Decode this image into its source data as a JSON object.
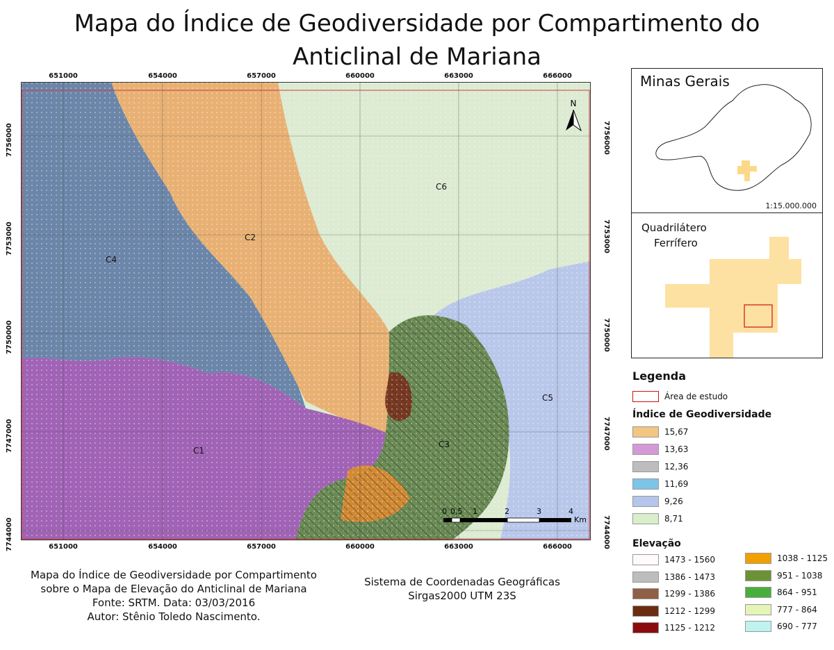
{
  "title": {
    "line1": "Mapa do Índice de Geodiversidade por Compartimento do",
    "line2": "Anticlinal de Mariana"
  },
  "map": {
    "x_ticks": [
      "651000",
      "654000",
      "657000",
      "660000",
      "663000",
      "666000"
    ],
    "y_ticks": [
      "7756000",
      "7753000",
      "7750000",
      "7747000",
      "7744000"
    ],
    "region_labels": [
      "C1",
      "C2",
      "C3",
      "C4",
      "C5",
      "C6"
    ],
    "north_label": "N",
    "scale": {
      "marks": [
        "0",
        "0,5",
        "1",
        "2",
        "3",
        "4"
      ],
      "unit": "Km"
    }
  },
  "inset_mg": {
    "title": "Minas Gerais",
    "scale": "1:15.000.000"
  },
  "inset_qf": {
    "title_line1": "Quadrilátero",
    "title_line2": "Ferrífero"
  },
  "legend": {
    "title": "Legenda",
    "study_area": "Área de estudo",
    "geo_title": "Índice de Geodiversidade",
    "geo_items": [
      {
        "label": "15,67",
        "color": "#f2c580"
      },
      {
        "label": "13,63",
        "color": "#d49ad8"
      },
      {
        "label": "12,36",
        "color": "#bdbdbd"
      },
      {
        "label": "11,69",
        "color": "#7cc4e8"
      },
      {
        "label": "9,26",
        "color": "#b4c6ea"
      },
      {
        "label": "8,71",
        "color": "#d9efcb"
      }
    ],
    "elev_title": "Elevação",
    "elev_left": [
      {
        "label": "1473 - 1560",
        "color": "#fdf9fd"
      },
      {
        "label": "1386 - 1473",
        "color": "#bdbdbd"
      },
      {
        "label": "1299 - 1386",
        "color": "#8f5f46"
      },
      {
        "label": "1212 - 1299",
        "color": "#6b2d12"
      },
      {
        "label": "1125 - 1212",
        "color": "#8b0c0c"
      }
    ],
    "elev_right": [
      {
        "label": "1038 - 1125",
        "color": "#f0a000"
      },
      {
        "label": "951 - 1038",
        "color": "#6c9234"
      },
      {
        "label": "864 - 951",
        "color": "#4aae3c"
      },
      {
        "label": "777 - 864",
        "color": "#e4f5b7"
      },
      {
        "label": "690 - 777",
        "color": "#bff3ef"
      }
    ]
  },
  "footer_left": {
    "line1": "Mapa do Índice de Geodiversidade por Compartimento",
    "line2": "sobre o Mapa de Elevação do Anticlinal de Mariana",
    "line3": "Fonte: SRTM. Data: 03/03/2016",
    "line4": "Autor: Stênio Toledo Nascimento."
  },
  "footer_right": {
    "line1": "Sistema de Coordenadas Geográficas",
    "line2": "Sirgas2000 UTM 23S"
  }
}
